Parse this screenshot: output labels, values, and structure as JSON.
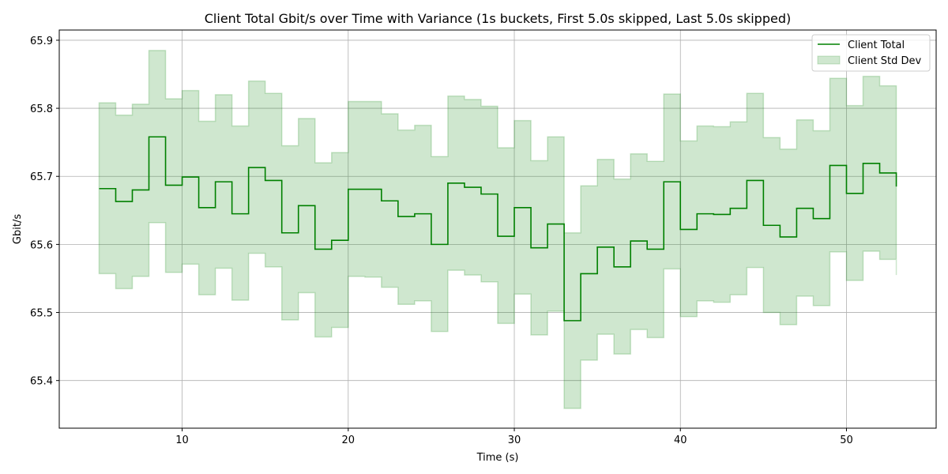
{
  "chart_data": {
    "type": "line",
    "title": "Client Total Gbit/s over Time with Variance (1s buckets, First 5.0s skipped, Last 5.0s skipped)",
    "xlabel": "Time (s)",
    "ylabel": "Gbit/s",
    "xlim": [
      2.6,
      55.4
    ],
    "ylim": [
      65.33,
      65.915
    ],
    "xticks": [
      10,
      20,
      30,
      40,
      50
    ],
    "yticks": [
      65.4,
      65.5,
      65.6,
      65.7,
      65.8,
      65.9
    ],
    "xtick_labels": [
      "10",
      "20",
      "30",
      "40",
      "50"
    ],
    "ytick_labels": [
      "65.4",
      "65.5",
      "65.6",
      "65.7",
      "65.8",
      "65.9"
    ],
    "grid": true,
    "legend_position": "top-right",
    "step": "post",
    "x": [
      5,
      6,
      7,
      8,
      9,
      10,
      11,
      12,
      13,
      14,
      15,
      16,
      17,
      18,
      19,
      20,
      21,
      22,
      23,
      24,
      25,
      26,
      27,
      28,
      29,
      30,
      31,
      32,
      33,
      34,
      35,
      36,
      37,
      38,
      39,
      40,
      41,
      42,
      43,
      44,
      45,
      46,
      47,
      48,
      49,
      50,
      51,
      52,
      53
    ],
    "series": [
      {
        "name": "Client Total",
        "color": "#008000",
        "values": [
          65.682,
          65.663,
          65.68,
          65.758,
          65.687,
          65.699,
          65.654,
          65.692,
          65.645,
          65.713,
          65.694,
          65.617,
          65.657,
          65.593,
          65.606,
          65.681,
          65.681,
          65.664,
          65.641,
          65.645,
          65.6,
          65.69,
          65.684,
          65.674,
          65.612,
          65.654,
          65.595,
          65.63,
          65.488,
          65.557,
          65.596,
          65.567,
          65.605,
          65.593,
          65.692,
          65.622,
          65.645,
          65.644,
          65.653,
          65.694,
          65.628,
          65.611,
          65.653,
          65.638,
          65.716,
          65.675,
          65.719,
          65.705,
          65.685
        ]
      },
      {
        "name": "Client Std Dev",
        "color": "#008000",
        "type": "band",
        "upper": [
          65.808,
          65.79,
          65.806,
          65.885,
          65.814,
          65.826,
          65.781,
          65.82,
          65.774,
          65.84,
          65.822,
          65.745,
          65.785,
          65.72,
          65.735,
          65.81,
          65.81,
          65.792,
          65.768,
          65.775,
          65.729,
          65.818,
          65.813,
          65.803,
          65.742,
          65.782,
          65.723,
          65.758,
          65.617,
          65.686,
          65.725,
          65.696,
          65.733,
          65.722,
          65.821,
          65.752,
          65.774,
          65.773,
          65.78,
          65.822,
          65.757,
          65.74,
          65.783,
          65.767,
          65.844,
          65.804,
          65.847,
          65.833,
          65.815
        ],
        "lower": [
          65.557,
          65.535,
          65.553,
          65.632,
          65.559,
          65.571,
          65.526,
          65.565,
          65.518,
          65.587,
          65.567,
          65.489,
          65.529,
          65.464,
          65.478,
          65.553,
          65.552,
          65.537,
          65.512,
          65.517,
          65.472,
          65.562,
          65.555,
          65.545,
          65.484,
          65.527,
          65.467,
          65.502,
          65.359,
          65.43,
          65.468,
          65.439,
          65.475,
          65.463,
          65.564,
          65.494,
          65.517,
          65.515,
          65.526,
          65.566,
          65.5,
          65.482,
          65.524,
          65.51,
          65.589,
          65.547,
          65.59,
          65.578,
          65.555
        ]
      }
    ]
  }
}
